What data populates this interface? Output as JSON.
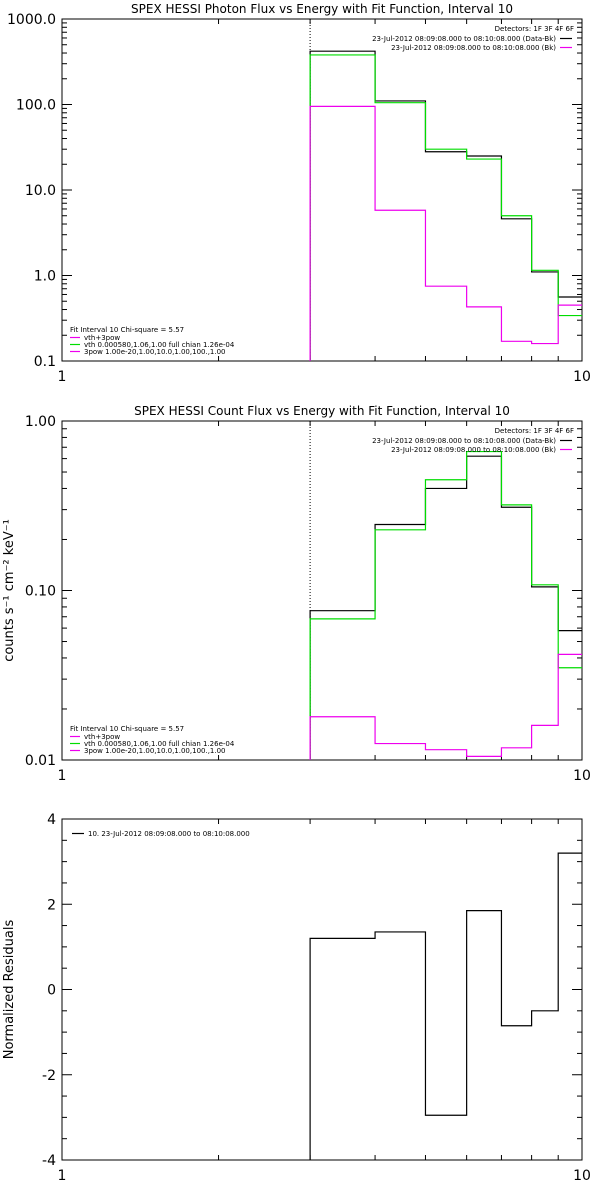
{
  "colors": {
    "data": "#000000",
    "model": "#00dd00",
    "background": "#ee00ee",
    "bg": "#ffffff"
  },
  "chart_data": [
    {
      "type": "line",
      "title": "SPEX HESSI Photon Flux vs Energy with Fit Function, Interval 10",
      "ylabel": "",
      "xscale": "log",
      "yscale": "log",
      "xlim": [
        1,
        10
      ],
      "ylim": [
        0.1,
        1000
      ],
      "xticks": [
        "1",
        "10"
      ],
      "yticks": [
        "0.1",
        "1.0",
        "10.0",
        "100.0",
        "1000.0"
      ],
      "legend_right": {
        "header": "Detectors: 1F 3F 4F 6F",
        "entries": [
          {
            "text": "23-Jul-2012 08:09:08.000 to 08:10:08.000 (Data-Bk)",
            "color": "#000000"
          },
          {
            "text": "23-Jul-2012 08:09:08.000 to 08:10:08.000 (Bk)",
            "color": "#ee00ee"
          }
        ]
      },
      "legend_left": {
        "header": "Fit Interval 10   Chi-square = 5.57",
        "entries": [
          {
            "text": "vth+3pow",
            "color": "#ee00ee"
          },
          {
            "text": "vth 0.000580,1.06,1.00  full chian 1.26e-04",
            "color": "#00dd00"
          },
          {
            "text": "3pow 1.00e-20,1.00,10.0,1.00,100.,1.00",
            "color": "#ee00ee"
          }
        ]
      },
      "vline_x": 3.0,
      "edges": [
        3.0,
        4.0,
        5.0,
        6.0,
        7.0,
        8.0,
        9.0,
        10.0
      ],
      "series": [
        {
          "color": "#000000",
          "values": [
            420,
            110,
            28,
            25,
            4.6,
            1.1,
            0.56
          ]
        },
        {
          "color": "#00dd00",
          "values": [
            380,
            105,
            30,
            23,
            5.0,
            1.15,
            0.34
          ]
        },
        {
          "color": "#ee00ee",
          "values": [
            95,
            5.8,
            0.75,
            0.43,
            0.17,
            0.16,
            0.45
          ]
        }
      ]
    },
    {
      "type": "line",
      "title": "SPEX HESSI Count Flux vs Energy with Fit Function, Interval 10",
      "ylabel": "counts s⁻¹ cm⁻² keV⁻¹",
      "xscale": "log",
      "yscale": "log",
      "xlim": [
        1,
        10
      ],
      "ylim": [
        0.01,
        1.0
      ],
      "xticks": [
        "1",
        "10"
      ],
      "yticks": [
        "0.01",
        "0.10",
        "1.00"
      ],
      "legend_right": {
        "header": "Detectors: 1F 3F 4F 6F",
        "entries": [
          {
            "text": "23-Jul-2012 08:09:08.000 to 08:10:08.000 (Data-Bk)",
            "color": "#000000"
          },
          {
            "text": "23-Jul-2012 08:09:08.000 to 08:10:08.000 (Bk)",
            "color": "#ee00ee"
          }
        ]
      },
      "legend_left": {
        "header": "Fit Interval 10   Chi-square = 5.57",
        "entries": [
          {
            "text": "vth+3pow",
            "color": "#ee00ee"
          },
          {
            "text": "vth 0.000580,1.06,1.00  full chian 1.26e-04",
            "color": "#00dd00"
          },
          {
            "text": "3pow 1.00e-20,1.00,10.0,1.00,100.,1.00",
            "color": "#ee00ee"
          }
        ]
      },
      "vline_x": 3.0,
      "edges": [
        3.0,
        4.0,
        5.0,
        6.0,
        7.0,
        8.0,
        9.0,
        10.0
      ],
      "series": [
        {
          "color": "#000000",
          "values": [
            0.076,
            0.245,
            0.4,
            0.62,
            0.31,
            0.105,
            0.058
          ]
        },
        {
          "color": "#00dd00",
          "values": [
            0.068,
            0.228,
            0.45,
            0.66,
            0.32,
            0.108,
            0.035
          ]
        },
        {
          "color": "#ee00ee",
          "values": [
            0.018,
            0.0125,
            0.0115,
            0.0105,
            0.0118,
            0.016,
            0.042
          ]
        }
      ]
    },
    {
      "type": "line",
      "title": "",
      "ylabel": "Normalized Residuals",
      "xscale": "log",
      "yscale": "linear",
      "xlim": [
        1,
        10
      ],
      "ylim": [
        -4,
        4
      ],
      "xticks": [
        "1",
        "10"
      ],
      "yticks": [
        "-4",
        "-2",
        "0",
        "2",
        "4"
      ],
      "legend_left": {
        "header": "",
        "entries": [
          {
            "text": "10. 23-Jul-2012 08:09:08.000 to 08:10:08.000",
            "color": "#000000"
          }
        ]
      },
      "edges": [
        3.0,
        4.0,
        5.0,
        6.0,
        7.0,
        8.0,
        9.0,
        10.0
      ],
      "series": [
        {
          "color": "#000000",
          "values": [
            1.2,
            1.35,
            -2.95,
            1.85,
            -0.85,
            -0.5,
            3.2
          ]
        }
      ]
    }
  ]
}
